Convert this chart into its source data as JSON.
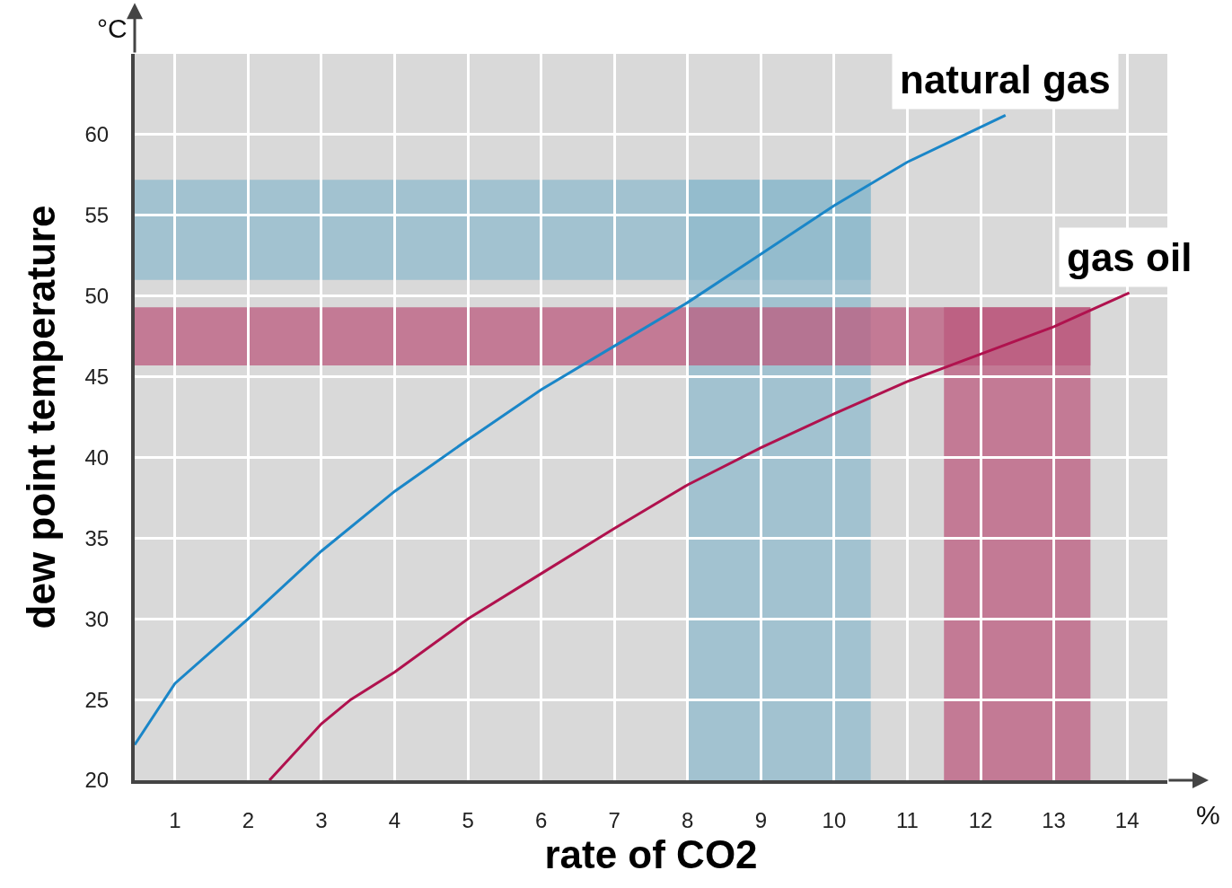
{
  "chart_data": {
    "type": "line",
    "xlabel": "rate of CO2",
    "ylabel": "dew point temperature",
    "annotations": [
      "°C",
      "%"
    ],
    "xlim": [
      0.45,
      14.55
    ],
    "xticks": [
      1,
      2,
      3,
      4,
      5,
      6,
      7,
      8,
      9,
      10,
      11,
      12,
      13,
      14
    ],
    "ylim": [
      20,
      65
    ],
    "yticks": [
      20,
      25,
      30,
      35,
      40,
      45,
      50,
      55,
      60
    ],
    "grid": true,
    "legend": false,
    "marker": "none",
    "line_style": "solid",
    "series": [
      {
        "name": "natural gas",
        "color": "#1a86c8",
        "x": [
          0.45,
          1,
          2,
          3,
          4,
          5,
          6,
          7,
          8,
          9,
          10,
          11,
          12.34
        ],
        "values": [
          22.2,
          26,
          30,
          34.2,
          37.9,
          41.1,
          44.2,
          46.9,
          49.6,
          52.6,
          55.6,
          58.3,
          61.2
        ]
      },
      {
        "name": "gas oil",
        "color": "#b0124e",
        "x": [
          2.29,
          3,
          3.4,
          4,
          5,
          6,
          7,
          8,
          9,
          10,
          11,
          12,
          13,
          14.03
        ],
        "values": [
          20,
          23.5,
          25,
          26.7,
          30,
          32.8,
          35.6,
          38.3,
          40.6,
          42.7,
          44.7,
          46.4,
          48.1,
          50.2
        ]
      }
    ],
    "bands": [
      {
        "axis": "y",
        "from": 51,
        "to": 57.2,
        "color": "#8fbacc"
      },
      {
        "axis": "x",
        "from": 8,
        "to": 10.5,
        "color": "#8fbacc"
      },
      {
        "axis": "y",
        "from": 45.7,
        "to": 49.3,
        "color": "#bb5a7e"
      },
      {
        "axis": "x",
        "from": 11.5,
        "to": 13.5,
        "color": "#bb5a7e"
      }
    ]
  }
}
